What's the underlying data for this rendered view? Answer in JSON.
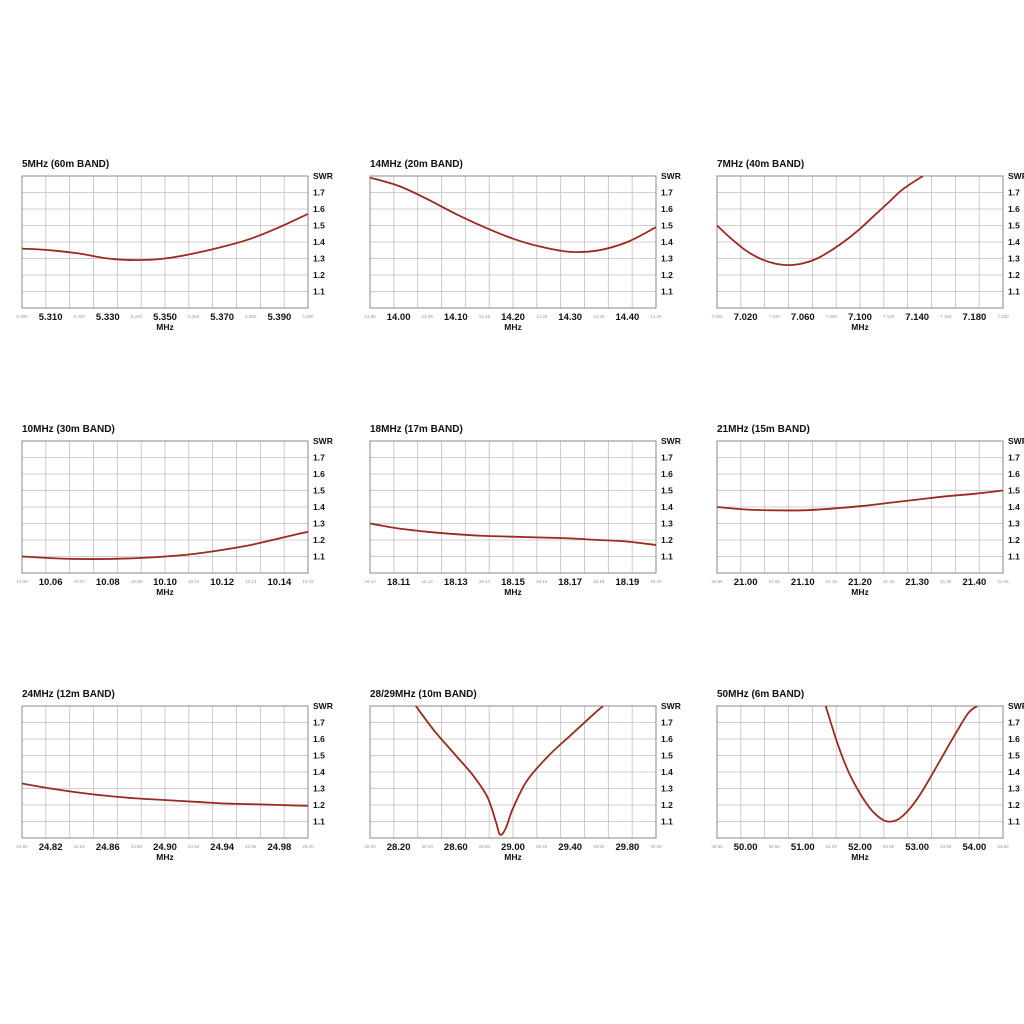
{
  "colors": {
    "curve": "#9b2a1f",
    "grid": "#bfbfbf",
    "frame": "#8a8a8a"
  },
  "chart_data": [
    {
      "type": "line",
      "title": "5MHz (60m BAND)",
      "xlabel": "MHz",
      "ylabel": "SWR",
      "xlim": [
        5.3,
        5.4
      ],
      "ylim": [
        1.0,
        1.8
      ],
      "y_ticks": [
        "1.7",
        "1.6",
        "1.5",
        "1.4",
        "1.3",
        "1.2",
        "1.1"
      ],
      "x_major_ticks": [
        {
          "value": 5.31,
          "label": "5.310"
        },
        {
          "value": 5.33,
          "label": "5.330"
        },
        {
          "value": 5.35,
          "label": "5.350"
        },
        {
          "value": 5.37,
          "label": "5.370"
        },
        {
          "value": 5.39,
          "label": "5.390"
        }
      ],
      "x_minor_ticks": [
        {
          "value": 5.3,
          "label": "5.300"
        },
        {
          "value": 5.32,
          "label": "5.320"
        },
        {
          "value": 5.34,
          "label": "5.340"
        },
        {
          "value": 5.36,
          "label": "5.360"
        },
        {
          "value": 5.38,
          "label": "5.380"
        },
        {
          "value": 5.4,
          "label": "5.400"
        }
      ],
      "series": [
        {
          "x": [
            5.3,
            5.31,
            5.32,
            5.33,
            5.34,
            5.35,
            5.36,
            5.37,
            5.38,
            5.39,
            5.4
          ],
          "y": [
            1.36,
            1.35,
            1.33,
            1.3,
            1.29,
            1.3,
            1.33,
            1.37,
            1.42,
            1.49,
            1.57
          ]
        }
      ],
      "grid": true
    },
    {
      "type": "line",
      "title": "14MHz (20m BAND)",
      "xlabel": "MHz",
      "ylabel": "SWR",
      "xlim": [
        13.95,
        14.45
      ],
      "ylim": [
        1.0,
        1.8
      ],
      "y_ticks": [
        "1.7",
        "1.6",
        "1.5",
        "1.4",
        "1.3",
        "1.2",
        "1.1"
      ],
      "x_major_ticks": [
        {
          "value": 14.0,
          "label": "14.00"
        },
        {
          "value": 14.1,
          "label": "14.10"
        },
        {
          "value": 14.2,
          "label": "14.20"
        },
        {
          "value": 14.3,
          "label": "14.30"
        },
        {
          "value": 14.4,
          "label": "14.40"
        }
      ],
      "x_minor_ticks": [
        {
          "value": 13.95,
          "label": "13.95"
        },
        {
          "value": 14.05,
          "label": "14.05"
        },
        {
          "value": 14.15,
          "label": "14.15"
        },
        {
          "value": 14.25,
          "label": "14.25"
        },
        {
          "value": 14.35,
          "label": "14.35"
        },
        {
          "value": 14.45,
          "label": "14.45"
        }
      ],
      "series": [
        {
          "x": [
            13.95,
            14.0,
            14.05,
            14.1,
            14.15,
            14.2,
            14.25,
            14.3,
            14.35,
            14.4,
            14.45
          ],
          "y": [
            1.79,
            1.74,
            1.66,
            1.57,
            1.49,
            1.42,
            1.37,
            1.34,
            1.35,
            1.4,
            1.49
          ]
        }
      ],
      "grid": true
    },
    {
      "type": "line",
      "title": "7MHz (40m BAND)",
      "xlabel": "MHz",
      "ylabel": "SWR",
      "xlim": [
        7.0,
        7.2
      ],
      "ylim": [
        1.0,
        1.8
      ],
      "y_ticks": [
        "1.7",
        "1.6",
        "1.5",
        "1.4",
        "1.3",
        "1.2",
        "1.1"
      ],
      "x_major_ticks": [
        {
          "value": 7.02,
          "label": "7.020"
        },
        {
          "value": 7.06,
          "label": "7.060"
        },
        {
          "value": 7.1,
          "label": "7.100"
        },
        {
          "value": 7.14,
          "label": "7.140"
        },
        {
          "value": 7.18,
          "label": "7.180"
        }
      ],
      "x_minor_ticks": [
        {
          "value": 7.0,
          "label": "7.000"
        },
        {
          "value": 7.04,
          "label": "7.040"
        },
        {
          "value": 7.08,
          "label": "7.080"
        },
        {
          "value": 7.12,
          "label": "7.120"
        },
        {
          "value": 7.16,
          "label": "7.160"
        },
        {
          "value": 7.2,
          "label": "7.200"
        }
      ],
      "series": [
        {
          "x": [
            7.0,
            7.01,
            7.02,
            7.03,
            7.04,
            7.05,
            7.06,
            7.07,
            7.08,
            7.09,
            7.1,
            7.11,
            7.12,
            7.13,
            7.144
          ],
          "y": [
            1.5,
            1.42,
            1.35,
            1.3,
            1.27,
            1.26,
            1.27,
            1.3,
            1.35,
            1.41,
            1.48,
            1.56,
            1.64,
            1.72,
            1.8
          ]
        }
      ],
      "grid": true
    },
    {
      "type": "line",
      "title": "10MHz (30m BAND)",
      "xlabel": "MHz",
      "ylabel": "SWR",
      "xlim": [
        10.05,
        10.15
      ],
      "ylim": [
        1.0,
        1.8
      ],
      "y_ticks": [
        "1.7",
        "1.6",
        "1.5",
        "1.4",
        "1.3",
        "1.2",
        "1.1"
      ],
      "x_major_ticks": [
        {
          "value": 10.06,
          "label": "10.06"
        },
        {
          "value": 10.08,
          "label": "10.08"
        },
        {
          "value": 10.1,
          "label": "10.10"
        },
        {
          "value": 10.12,
          "label": "10.12"
        },
        {
          "value": 10.14,
          "label": "10.14"
        }
      ],
      "x_minor_ticks": [
        {
          "value": 10.05,
          "label": "10.05"
        },
        {
          "value": 10.07,
          "label": "10.07"
        },
        {
          "value": 10.09,
          "label": "10.09"
        },
        {
          "value": 10.11,
          "label": "10.11"
        },
        {
          "value": 10.13,
          "label": "10.13"
        },
        {
          "value": 10.15,
          "label": "10.15"
        }
      ],
      "series": [
        {
          "x": [
            10.05,
            10.06,
            10.07,
            10.08,
            10.09,
            10.1,
            10.11,
            10.12,
            10.13,
            10.14,
            10.15
          ],
          "y": [
            1.1,
            1.09,
            1.085,
            1.085,
            1.09,
            1.1,
            1.115,
            1.14,
            1.17,
            1.21,
            1.25
          ]
        }
      ],
      "grid": true
    },
    {
      "type": "line",
      "title": "18MHz (17m BAND)",
      "xlabel": "MHz",
      "ylabel": "SWR",
      "xlim": [
        18.1,
        18.2
      ],
      "ylim": [
        1.0,
        1.8
      ],
      "y_ticks": [
        "1.7",
        "1.6",
        "1.5",
        "1.4",
        "1.3",
        "1.2",
        "1.1"
      ],
      "x_major_ticks": [
        {
          "value": 18.11,
          "label": "18.11"
        },
        {
          "value": 18.13,
          "label": "18.13"
        },
        {
          "value": 18.15,
          "label": "18.15"
        },
        {
          "value": 18.17,
          "label": "18.17"
        },
        {
          "value": 18.19,
          "label": "18.19"
        }
      ],
      "x_minor_ticks": [
        {
          "value": 18.1,
          "label": "18.10"
        },
        {
          "value": 18.12,
          "label": "18.12"
        },
        {
          "value": 18.14,
          "label": "18.14"
        },
        {
          "value": 18.16,
          "label": "18.16"
        },
        {
          "value": 18.18,
          "label": "18.18"
        },
        {
          "value": 18.2,
          "label": "18.20"
        }
      ],
      "series": [
        {
          "x": [
            18.1,
            18.11,
            18.12,
            18.13,
            18.14,
            18.15,
            18.16,
            18.17,
            18.18,
            18.19,
            18.2
          ],
          "y": [
            1.3,
            1.27,
            1.25,
            1.235,
            1.225,
            1.22,
            1.215,
            1.21,
            1.2,
            1.19,
            1.17
          ]
        }
      ],
      "grid": true
    },
    {
      "type": "line",
      "title": "21MHz (15m BAND)",
      "xlabel": "MHz",
      "ylabel": "SWR",
      "xlim": [
        20.95,
        21.45
      ],
      "ylim": [
        1.0,
        1.8
      ],
      "y_ticks": [
        "1.7",
        "1.6",
        "1.5",
        "1.4",
        "1.3",
        "1.2",
        "1.1"
      ],
      "x_major_ticks": [
        {
          "value": 21.0,
          "label": "21.00"
        },
        {
          "value": 21.1,
          "label": "21.10"
        },
        {
          "value": 21.2,
          "label": "21.20"
        },
        {
          "value": 21.3,
          "label": "21.30"
        },
        {
          "value": 21.4,
          "label": "21.40"
        }
      ],
      "x_minor_ticks": [
        {
          "value": 20.95,
          "label": "20.95"
        },
        {
          "value": 21.05,
          "label": "21.05"
        },
        {
          "value": 21.15,
          "label": "21.15"
        },
        {
          "value": 21.25,
          "label": "21.25"
        },
        {
          "value": 21.35,
          "label": "21.35"
        },
        {
          "value": 21.45,
          "label": "21.45"
        }
      ],
      "series": [
        {
          "x": [
            20.95,
            21.0,
            21.05,
            21.1,
            21.15,
            21.2,
            21.25,
            21.3,
            21.35,
            21.4,
            21.45
          ],
          "y": [
            1.4,
            1.385,
            1.38,
            1.38,
            1.39,
            1.405,
            1.425,
            1.445,
            1.465,
            1.48,
            1.5
          ]
        }
      ],
      "grid": true
    },
    {
      "type": "line",
      "title": "24MHz (12m BAND)",
      "xlabel": "MHz",
      "ylabel": "SWR",
      "xlim": [
        24.8,
        25.0
      ],
      "ylim": [
        1.0,
        1.8
      ],
      "y_ticks": [
        "1.7",
        "1.6",
        "1.5",
        "1.4",
        "1.3",
        "1.2",
        "1.1"
      ],
      "x_major_ticks": [
        {
          "value": 24.82,
          "label": "24.82"
        },
        {
          "value": 24.86,
          "label": "24.86"
        },
        {
          "value": 24.9,
          "label": "24.90"
        },
        {
          "value": 24.94,
          "label": "24.94"
        },
        {
          "value": 24.98,
          "label": "24.98"
        }
      ],
      "x_minor_ticks": [
        {
          "value": 24.8,
          "label": "24.80"
        },
        {
          "value": 24.84,
          "label": "24.84"
        },
        {
          "value": 24.88,
          "label": "24.88"
        },
        {
          "value": 24.92,
          "label": "24.92"
        },
        {
          "value": 24.96,
          "label": "24.96"
        },
        {
          "value": 25.0,
          "label": "25.00"
        }
      ],
      "series": [
        {
          "x": [
            24.8,
            24.82,
            24.84,
            24.86,
            24.88,
            24.9,
            24.92,
            24.94,
            24.96,
            24.98,
            25.0
          ],
          "y": [
            1.33,
            1.3,
            1.275,
            1.255,
            1.24,
            1.23,
            1.22,
            1.21,
            1.205,
            1.2,
            1.195
          ]
        }
      ],
      "grid": true
    },
    {
      "type": "line",
      "title": "28/29MHz (10m BAND)",
      "xlabel": "MHz",
      "ylabel": "SWR",
      "xlim": [
        28.0,
        30.0
      ],
      "ylim": [
        1.0,
        1.8
      ],
      "y_ticks": [
        "1.7",
        "1.6",
        "1.5",
        "1.4",
        "1.3",
        "1.2",
        "1.1"
      ],
      "x_major_ticks": [
        {
          "value": 28.2,
          "label": "28.20"
        },
        {
          "value": 28.6,
          "label": "28.60"
        },
        {
          "value": 29.0,
          "label": "29.00"
        },
        {
          "value": 29.4,
          "label": "29.40"
        },
        {
          "value": 29.8,
          "label": "29.80"
        }
      ],
      "x_minor_ticks": [
        {
          "value": 28.0,
          "label": "28.00"
        },
        {
          "value": 28.4,
          "label": "28.40"
        },
        {
          "value": 28.8,
          "label": "28.80"
        },
        {
          "value": 29.2,
          "label": "29.20"
        },
        {
          "value": 29.6,
          "label": "29.60"
        },
        {
          "value": 30.0,
          "label": "30.00"
        }
      ],
      "series": [
        {
          "x": [
            28.32,
            28.45,
            28.6,
            28.72,
            28.82,
            28.88,
            28.91,
            28.95,
            29.0,
            29.1,
            29.25,
            29.4,
            29.55,
            29.63
          ],
          "y": [
            1.8,
            1.65,
            1.5,
            1.38,
            1.25,
            1.1,
            1.02,
            1.06,
            1.18,
            1.35,
            1.5,
            1.62,
            1.74,
            1.8
          ]
        }
      ],
      "grid": true
    },
    {
      "type": "line",
      "title": "50MHz (6m BAND)",
      "xlabel": "MHz",
      "ylabel": "SWR",
      "xlim": [
        49.5,
        54.5
      ],
      "ylim": [
        1.0,
        1.8
      ],
      "y_ticks": [
        "1.7",
        "1.6",
        "1.5",
        "1.4",
        "1.3",
        "1.2",
        "1.1"
      ],
      "x_major_ticks": [
        {
          "value": 50.0,
          "label": "50.00"
        },
        {
          "value": 51.0,
          "label": "51.00"
        },
        {
          "value": 52.0,
          "label": "52.00"
        },
        {
          "value": 53.0,
          "label": "53.00"
        },
        {
          "value": 54.0,
          "label": "54.00"
        }
      ],
      "x_minor_ticks": [
        {
          "value": 49.5,
          "label": "49.50"
        },
        {
          "value": 50.5,
          "label": "50.50"
        },
        {
          "value": 51.5,
          "label": "51.50"
        },
        {
          "value": 52.5,
          "label": "52.50"
        },
        {
          "value": 53.5,
          "label": "53.50"
        },
        {
          "value": 54.5,
          "label": "54.50"
        }
      ],
      "series": [
        {
          "x": [
            51.4,
            51.6,
            51.8,
            52.0,
            52.2,
            52.4,
            52.55,
            52.7,
            52.9,
            53.1,
            53.3,
            53.5,
            53.7,
            53.9,
            54.05
          ],
          "y": [
            1.8,
            1.58,
            1.4,
            1.27,
            1.17,
            1.11,
            1.1,
            1.12,
            1.19,
            1.29,
            1.41,
            1.53,
            1.65,
            1.76,
            1.8
          ]
        }
      ],
      "grid": true
    }
  ]
}
